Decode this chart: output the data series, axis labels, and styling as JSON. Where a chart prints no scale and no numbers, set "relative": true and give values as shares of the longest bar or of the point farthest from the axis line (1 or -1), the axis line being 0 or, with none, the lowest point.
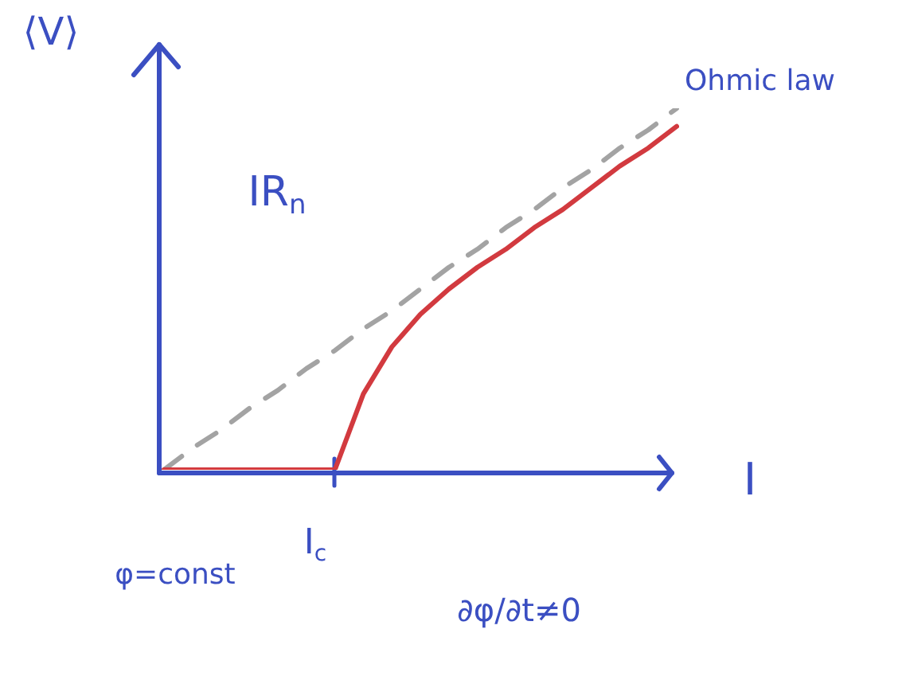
{
  "chart_data": {
    "type": "line",
    "relative": true,
    "xlabel": "I",
    "ylabel": "⟨V⟩",
    "categories": [
      null,
      null,
      null,
      null,
      null,
      null,
      null,
      null,
      null,
      null,
      null,
      null,
      null,
      null,
      null,
      null,
      null,
      null,
      null
    ],
    "series": [
      {
        "color": "#d23a3f",
        "values": [
          0,
          0,
          0,
          0,
          0,
          0,
          0,
          0.21,
          0.34,
          0.43,
          0.5,
          0.56,
          0.61,
          0.67,
          0.72,
          0.78,
          0.84,
          0.89,
          0.95
        ]
      },
      {
        "name": "Ohmic law",
        "color": "#a3a3a3",
        "line_style": "dashed",
        "values": [
          0,
          0.06,
          0.11,
          0.17,
          0.22,
          0.28,
          0.33,
          0.39,
          0.44,
          0.5,
          0.56,
          0.61,
          0.67,
          0.72,
          0.78,
          0.83,
          0.89,
          0.94,
          1
        ]
      }
    ],
    "annotations": [
      "IR$_{n}$",
      "I$_{c}$",
      "φ=const",
      "∂φ/∂t≠0"
    ],
    "marker": "none",
    "grid": false,
    "legend": false
  }
}
